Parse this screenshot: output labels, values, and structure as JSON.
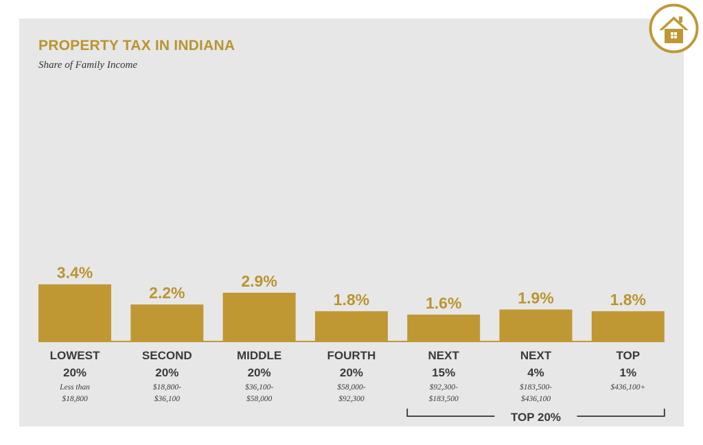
{
  "chart_data": {
    "type": "bar",
    "title": "PROPERTY TAX IN INDIANA",
    "subtitle": "Share of Family Income",
    "categories": [
      {
        "label_line1": "LOWEST",
        "label_line2": "20%",
        "range_line1": "Less than",
        "range_line2": "$18,800"
      },
      {
        "label_line1": "SECOND",
        "label_line2": "20%",
        "range_line1": "$18,800-",
        "range_line2": "$36,100"
      },
      {
        "label_line1": "MIDDLE",
        "label_line2": "20%",
        "range_line1": "$36,100-",
        "range_line2": "$58,000"
      },
      {
        "label_line1": "FOURTH",
        "label_line2": "20%",
        "range_line1": "$58,000-",
        "range_line2": "$92,300"
      },
      {
        "label_line1": "NEXT",
        "label_line2": "15%",
        "range_line1": "$92,300-",
        "range_line2": "$183,500"
      },
      {
        "label_line1": "NEXT",
        "label_line2": "4%",
        "range_line1": "$183,500-",
        "range_line2": "$436,100"
      },
      {
        "label_line1": "TOP",
        "label_line2": "1%",
        "range_line1": "$436,100+",
        "range_line2": ""
      }
    ],
    "values": [
      3.4,
      2.2,
      2.9,
      1.8,
      1.6,
      1.9,
      1.8
    ],
    "value_labels": [
      "3.4%",
      "2.2%",
      "2.9%",
      "1.8%",
      "1.6%",
      "1.9%",
      "1.8%"
    ],
    "ylim": [
      0,
      10.2
    ],
    "grid": false,
    "group_bracket": {
      "label": "TOP 20%",
      "from_index": 4,
      "to_index": 6
    }
  },
  "colors": {
    "bar": "#bf9834",
    "value_label": "#b99530",
    "category_label": "#3a3a3a",
    "range_label": "#3a3a3a",
    "panel": "#e7e7e8",
    "badge": "#bf9834"
  },
  "icons": {
    "badge": "house-icon"
  }
}
